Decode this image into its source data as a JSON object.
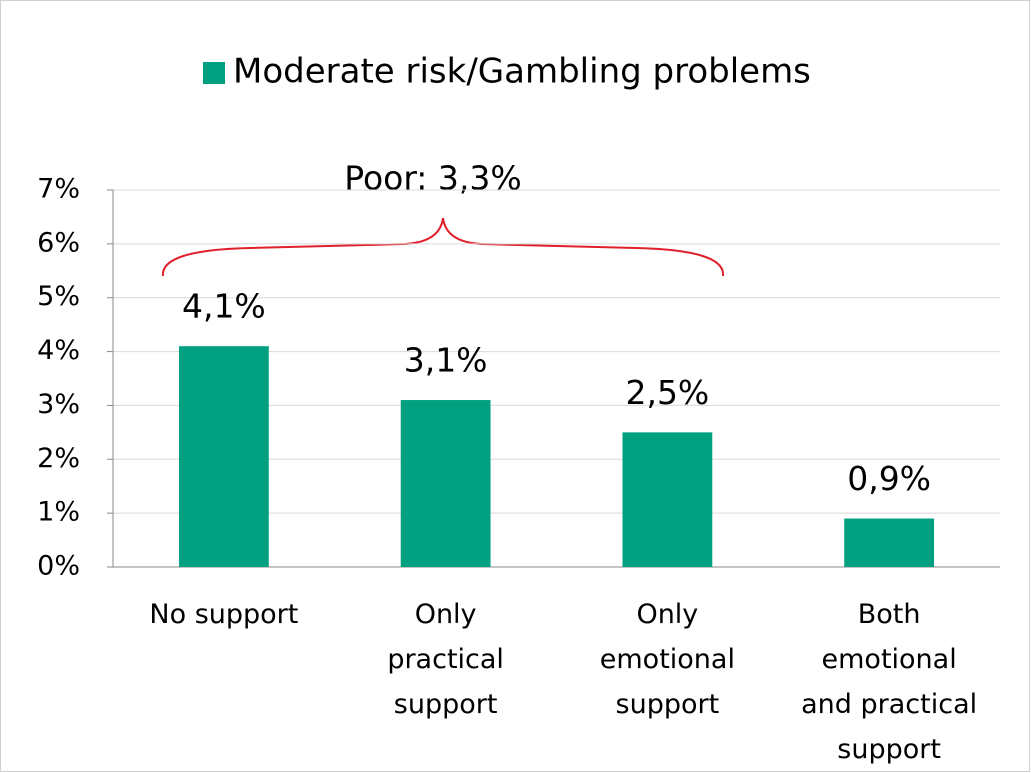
{
  "chart_data": {
    "type": "bar",
    "legend": "top",
    "series": [
      {
        "name": "Moderate risk/Gambling problems",
        "color": "#00a080",
        "values": [
          4.1,
          3.1,
          2.5,
          0.9
        ],
        "value_labels": [
          "4,1%",
          "3,1%",
          "2,5%",
          "0,9%"
        ]
      }
    ],
    "categories": [
      "No support",
      "Only\npractical\nsupport",
      "Only\nemotional\nsupport",
      "Both\nemotional\nand practical\nsupport"
    ],
    "annotation": "Poor: 3,3%",
    "ylim": [
      0,
      7
    ],
    "yticks": [
      {
        "value": 0,
        "label": "0%"
      },
      {
        "value": 1,
        "label": "1%"
      },
      {
        "value": 2,
        "label": "2%"
      },
      {
        "value": 3,
        "label": "3%"
      },
      {
        "value": 4,
        "label": "4%"
      },
      {
        "value": 5,
        "label": "5%"
      },
      {
        "value": 6,
        "label": "6%"
      },
      {
        "value": 7,
        "label": "7%"
      }
    ],
    "grid": true
  }
}
